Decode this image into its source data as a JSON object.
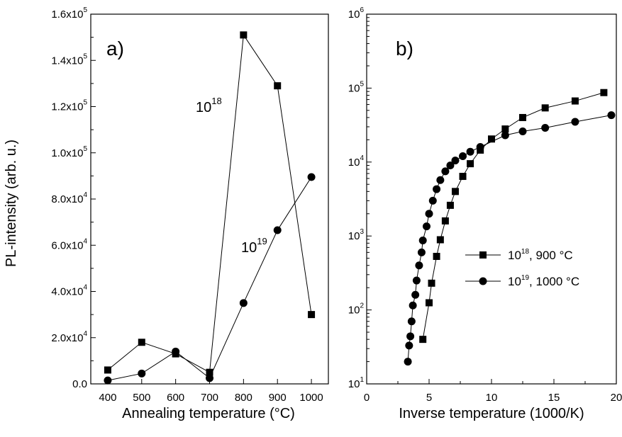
{
  "chart_data": [
    {
      "type": "line",
      "panel_label": "a)",
      "xlabel": "Annealing temperature (°C)",
      "ylabel": "PL-intensity (arb. u.)",
      "xlim": [
        350,
        1050
      ],
      "ylim": [
        0,
        160000
      ],
      "x_ticks": [
        400,
        500,
        600,
        700,
        800,
        900,
        1000
      ],
      "y_ticks": [
        {
          "mant": "0.0",
          "exp": ""
        },
        {
          "mant": "2.0x10",
          "exp": "4"
        },
        {
          "mant": "4.0x10",
          "exp": "4"
        },
        {
          "mant": "6.0x10",
          "exp": "4"
        },
        {
          "mant": "8.0x10",
          "exp": "4"
        },
        {
          "mant": "1.0x10",
          "exp": "5"
        },
        {
          "mant": "1.2x10",
          "exp": "5"
        },
        {
          "mant": "1.4x10",
          "exp": "5"
        },
        {
          "mant": "1.6x10",
          "exp": "5"
        }
      ],
      "grid": false,
      "annotations": [
        {
          "base": "10",
          "exp": "18"
        },
        {
          "base": "10",
          "exp": "19"
        }
      ],
      "series": [
        {
          "marker": "square",
          "x": [
            400,
            500,
            600,
            700,
            800,
            900,
            1000
          ],
          "y": [
            6000,
            18000,
            13000,
            5000,
            151000,
            129000,
            30000
          ]
        },
        {
          "marker": "circle",
          "x": [
            400,
            500,
            600,
            700,
            800,
            900,
            1000
          ],
          "y": [
            1500,
            4500,
            14000,
            2500,
            35000,
            66500,
            89500
          ]
        }
      ]
    },
    {
      "type": "line",
      "panel_label": "b)",
      "xlabel": "Inverse temperature (1000/K)",
      "ylabel": "",
      "xlim": [
        0,
        20
      ],
      "ylim": [
        10,
        1000000
      ],
      "y_scale": "log",
      "x_ticks": [
        0,
        5,
        10,
        15,
        20
      ],
      "y_ticks": [
        {
          "base": "10",
          "exp": "1"
        },
        {
          "base": "10",
          "exp": "2"
        },
        {
          "base": "10",
          "exp": "3"
        },
        {
          "base": "10",
          "exp": "4"
        },
        {
          "base": "10",
          "exp": "5"
        },
        {
          "base": "10",
          "exp": "6"
        }
      ],
      "grid": false,
      "legend_position": "center-right",
      "series": [
        {
          "legend_base": "10",
          "legend_exp": "18",
          "legend_rest": ", 900 °C",
          "marker": "square",
          "x": [
            4.5,
            5.0,
            5.2,
            5.6,
            5.9,
            6.3,
            6.7,
            7.1,
            7.7,
            8.3,
            9.1,
            10.0,
            11.1,
            12.5,
            14.3,
            16.7,
            19.0
          ],
          "y": [
            40,
            125,
            230,
            530,
            890,
            1600,
            2600,
            4000,
            6400,
            9500,
            14500,
            20500,
            28000,
            40000,
            54000,
            67000,
            87000
          ]
        },
        {
          "legend_base": "10",
          "legend_exp": "19",
          "legend_rest": ", 1000 °C",
          "marker": "circle",
          "x": [
            3.3,
            3.4,
            3.5,
            3.6,
            3.7,
            3.9,
            4.0,
            4.2,
            4.4,
            4.5,
            4.8,
            5.0,
            5.3,
            5.6,
            5.9,
            6.3,
            6.7,
            7.1,
            7.7,
            8.3,
            9.1,
            11.1,
            12.5,
            14.3,
            16.7,
            19.6
          ],
          "y": [
            20,
            33,
            44,
            70,
            115,
            160,
            250,
            400,
            600,
            870,
            1350,
            2000,
            3000,
            4300,
            5700,
            7500,
            9000,
            10500,
            12000,
            13800,
            16000,
            23000,
            26000,
            29000,
            35000,
            43000
          ]
        }
      ]
    }
  ]
}
